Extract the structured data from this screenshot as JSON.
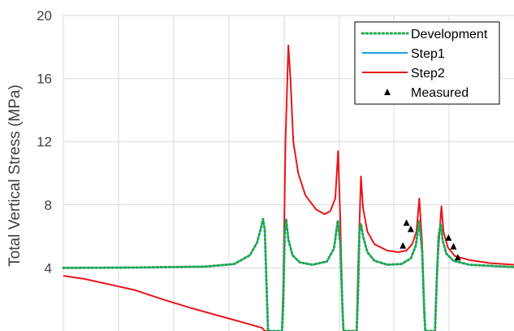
{
  "chart_data": {
    "type": "line",
    "title": "",
    "xlabel": "",
    "ylabel": "Total Vertical Stress (MPa)",
    "ylim": [
      0,
      20
    ],
    "xlim": [
      0,
      633
    ],
    "y_ticks": [
      4,
      8,
      12,
      16,
      20
    ],
    "y_tick_labels": [
      "4",
      "8",
      "12",
      "16",
      "20"
    ],
    "x_grid_lines": [
      80,
      148,
      216,
      284,
      352,
      420,
      487,
      555
    ],
    "grid": true,
    "legend_position": "top-right",
    "colors": {
      "development": "#22a84a",
      "step1": "#1e9fdc",
      "step2": "#e8161b",
      "measured": "#000000",
      "grid": "#d9d9d9",
      "axis_text": "#404040"
    },
    "legend": [
      {
        "label": "Development",
        "key": "development"
      },
      {
        "label": "Step1",
        "key": "step1"
      },
      {
        "label": "Step2",
        "key": "step2"
      },
      {
        "label": "Measured",
        "key": "measured"
      }
    ],
    "series": [
      {
        "name": "Development",
        "key": "development",
        "style": "dotted",
        "points": [
          [
            0,
            4.0
          ],
          [
            100,
            4.02
          ],
          [
            200,
            4.08
          ],
          [
            240,
            4.25
          ],
          [
            262,
            4.8
          ],
          [
            272,
            5.6
          ],
          [
            278,
            6.6
          ],
          [
            280.5,
            7.1
          ],
          [
            283,
            6.4
          ],
          [
            286,
            2.0
          ],
          [
            287.5,
            0
          ],
          [
            307,
            0
          ],
          [
            309,
            2.0
          ],
          [
            311,
            6.2
          ],
          [
            313,
            7.1
          ],
          [
            316,
            5.8
          ],
          [
            322,
            4.8
          ],
          [
            332,
            4.35
          ],
          [
            350,
            4.2
          ],
          [
            370,
            4.4
          ],
          [
            380,
            5.2
          ],
          [
            385.5,
            7.0
          ],
          [
            389,
            5.5
          ],
          [
            392,
            1.5
          ],
          [
            393.5,
            0
          ],
          [
            412,
            0
          ],
          [
            414,
            2.5
          ],
          [
            416,
            6.3
          ],
          [
            418,
            6.8
          ],
          [
            421,
            6.0
          ],
          [
            427,
            5.0
          ],
          [
            437,
            4.45
          ],
          [
            455,
            4.2
          ],
          [
            475,
            4.25
          ],
          [
            488,
            4.6
          ],
          [
            495,
            5.4
          ],
          [
            500,
            7.0
          ],
          [
            504,
            5.0
          ],
          [
            507,
            1.2
          ],
          [
            508.5,
            0
          ],
          [
            522,
            0
          ],
          [
            524,
            2.5
          ],
          [
            527,
            6.0
          ],
          [
            530,
            6.8
          ],
          [
            533,
            5.7
          ],
          [
            538,
            4.9
          ],
          [
            548,
            4.45
          ],
          [
            570,
            4.2
          ],
          [
            633,
            4.05
          ]
        ]
      },
      {
        "name": "Step1",
        "key": "step1",
        "style": "solid",
        "points": [
          [
            0,
            4.0
          ],
          [
            100,
            4.02
          ],
          [
            200,
            4.08
          ],
          [
            240,
            4.25
          ],
          [
            262,
            4.8
          ],
          [
            272,
            5.6
          ],
          [
            278,
            6.6
          ],
          [
            280.5,
            7.1
          ],
          [
            283,
            6.4
          ],
          [
            286,
            2.0
          ],
          [
            287.5,
            0
          ],
          [
            307,
            0
          ],
          [
            309,
            2.0
          ],
          [
            311,
            6.2
          ],
          [
            313,
            7.1
          ],
          [
            316,
            5.8
          ],
          [
            322,
            4.8
          ],
          [
            332,
            4.35
          ],
          [
            350,
            4.2
          ],
          [
            370,
            4.4
          ],
          [
            380,
            5.2
          ],
          [
            385.5,
            7.0
          ],
          [
            389,
            5.5
          ],
          [
            392,
            1.5
          ],
          [
            393.5,
            0
          ],
          [
            412,
            0
          ],
          [
            414,
            2.5
          ],
          [
            416,
            6.3
          ],
          [
            418,
            6.8
          ],
          [
            421,
            6.0
          ],
          [
            427,
            5.0
          ],
          [
            437,
            4.45
          ],
          [
            455,
            4.2
          ],
          [
            475,
            4.25
          ],
          [
            488,
            4.6
          ],
          [
            495,
            5.4
          ],
          [
            500,
            7.0
          ],
          [
            504,
            5.0
          ],
          [
            507,
            1.2
          ],
          [
            508.5,
            0
          ],
          [
            522,
            0
          ],
          [
            524,
            2.5
          ],
          [
            527,
            6.0
          ],
          [
            530,
            6.8
          ],
          [
            533,
            5.7
          ],
          [
            538,
            4.9
          ],
          [
            548,
            4.45
          ],
          [
            570,
            4.2
          ],
          [
            633,
            4.05
          ]
        ]
      },
      {
        "name": "Step2",
        "key": "step2",
        "style": "solid",
        "points": [
          [
            0,
            3.5
          ],
          [
            30,
            3.3
          ],
          [
            60,
            3.0
          ],
          [
            100,
            2.6
          ],
          [
            140,
            2.0
          ],
          [
            180,
            1.45
          ],
          [
            220,
            0.95
          ],
          [
            260,
            0.45
          ],
          [
            279,
            0.2
          ],
          [
            281,
            0.1
          ],
          [
            283,
            0
          ],
          [
            307,
            0
          ],
          [
            309,
            3.0
          ],
          [
            312,
            12.0
          ],
          [
            316,
            18.1
          ],
          [
            319,
            16.0
          ],
          [
            323,
            12.0
          ],
          [
            330,
            10.0
          ],
          [
            340,
            8.6
          ],
          [
            355,
            7.7
          ],
          [
            367,
            7.4
          ],
          [
            375,
            7.6
          ],
          [
            382,
            8.4
          ],
          [
            386,
            11.4
          ],
          [
            389,
            7.0
          ],
          [
            392,
            1.5
          ],
          [
            393.5,
            0
          ],
          [
            412,
            0
          ],
          [
            414,
            4.0
          ],
          [
            418,
            9.8
          ],
          [
            421,
            7.8
          ],
          [
            427,
            6.3
          ],
          [
            437,
            5.5
          ],
          [
            455,
            5.1
          ],
          [
            470,
            5.0
          ],
          [
            482,
            5.1
          ],
          [
            490,
            5.5
          ],
          [
            496,
            6.3
          ],
          [
            500,
            8.4
          ],
          [
            504,
            5.5
          ],
          [
            507,
            1.2
          ],
          [
            508.5,
            0
          ],
          [
            522,
            0
          ],
          [
            525,
            4.0
          ],
          [
            531,
            7.9
          ],
          [
            534,
            6.3
          ],
          [
            540,
            5.3
          ],
          [
            550,
            4.75
          ],
          [
            570,
            4.5
          ],
          [
            600,
            4.3
          ],
          [
            633,
            4.2
          ]
        ]
      },
      {
        "name": "Measured",
        "key": "measured",
        "style": "markers",
        "points": [
          [
            477,
            5.4
          ],
          [
            482,
            6.85
          ],
          [
            488,
            6.45
          ],
          [
            541,
            5.9
          ],
          [
            548,
            5.35
          ],
          [
            554,
            4.65
          ]
        ]
      }
    ]
  }
}
